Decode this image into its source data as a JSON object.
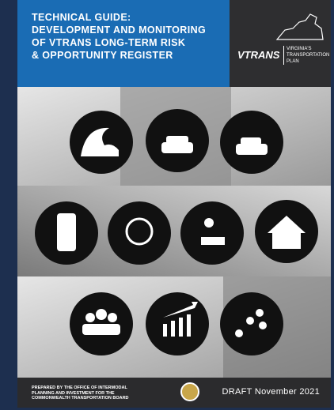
{
  "header": {
    "title_lines": [
      "TECHNICAL GUIDE:",
      "DEVELOPMENT AND MONITORING",
      "OF VTRANS LONG-TERM RISK",
      "& OPPORTUNITY REGISTER"
    ],
    "logo": "VTRANS",
    "logo_sub": [
      "VIRGINIA'S",
      "TRANSPORTATION PLAN"
    ]
  },
  "footer": {
    "prepared_by": [
      "PREPARED BY THE OFFICE OF INTERMODAL",
      "PLANNING AND INVESTMENT FOR THE",
      "COMMONWEALTH TRANSPORTATION BOARD"
    ],
    "status": "DRAFT November 2021"
  }
}
